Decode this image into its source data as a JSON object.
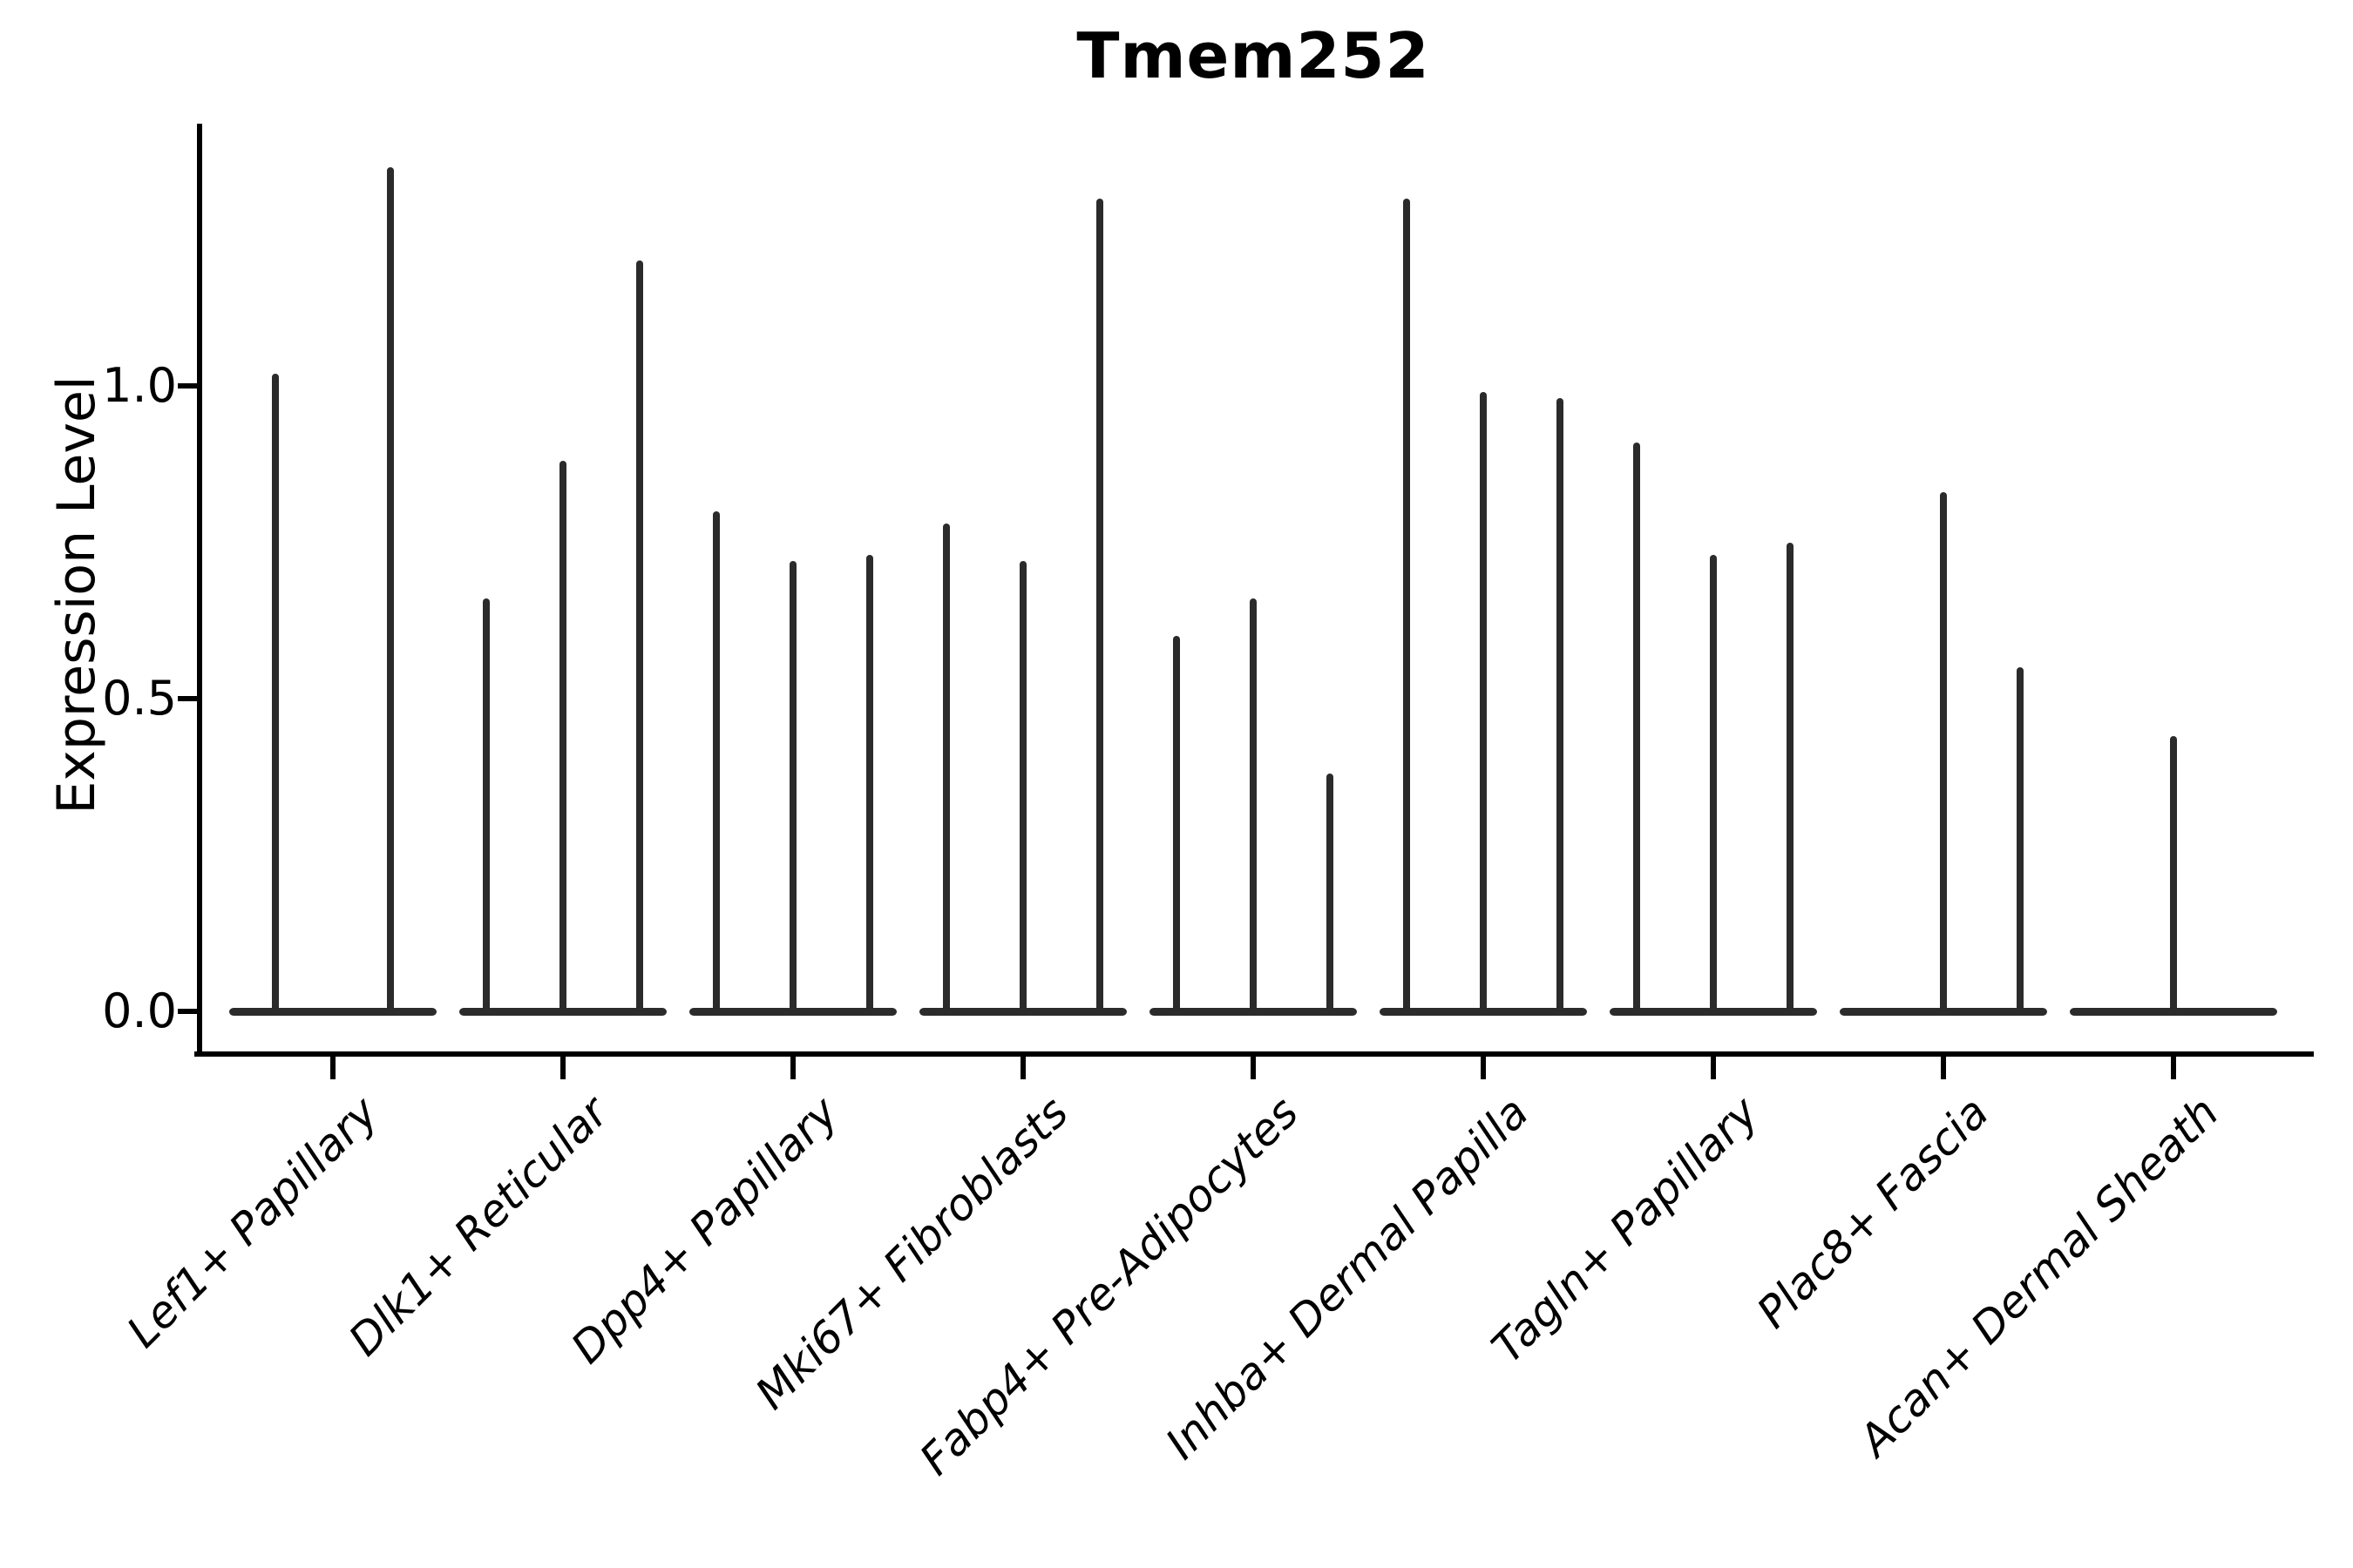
{
  "title": "Tmem252",
  "y_axis": {
    "label": "Expression Level"
  },
  "colors": {
    "violin": "#2b2b2b",
    "axis": "#000000",
    "text": "#000000",
    "background": "#ffffff"
  },
  "chart_data": {
    "type": "violin",
    "title": "Tmem252",
    "xlabel": "",
    "ylabel": "Expression Level",
    "ylim": [
      -0.07,
      1.42
    ],
    "grid": false,
    "legend": "none",
    "ytick_labels": [
      "1.0",
      "0.5",
      "0.0"
    ],
    "ytick_values": [
      1.0,
      0.5,
      0.0
    ],
    "categories": [
      "Lef1+ Papillary",
      "Dlk1+ Reticular",
      "Dpp4+ Papillary",
      "Mki67+ Fibroblasts",
      "Fabp4+ Pre-Adipocytes",
      "Inhba+ Dermal Papilla",
      "Tagln+ Papillary",
      "Plac8+ Fascia",
      "Acan+ Dermal Sheath"
    ],
    "baseline_value": 0.0,
    "description": "Each category shows violins whose density mass sits at expression 0 (flat base) with a thin spike up to the maximum expression value.",
    "violins": [
      {
        "category": "Lef1+ Papillary",
        "spikes": [
          {
            "offset_frac": -0.25,
            "max": 1.02
          },
          {
            "offset_frac": 0.25,
            "max": 1.35
          }
        ]
      },
      {
        "category": "Dlk1+ Reticular",
        "spikes": [
          {
            "offset_frac": -0.3333,
            "max": 0.66
          },
          {
            "offset_frac": 0,
            "max": 0.88
          },
          {
            "offset_frac": 0.3333,
            "max": 1.2
          }
        ]
      },
      {
        "category": "Dpp4+ Papillary",
        "spikes": [
          {
            "offset_frac": -0.3333,
            "max": 0.8
          },
          {
            "offset_frac": 0,
            "max": 0.72
          },
          {
            "offset_frac": 0.3333,
            "max": 0.73
          }
        ]
      },
      {
        "category": "Mki67+ Fibroblasts",
        "spikes": [
          {
            "offset_frac": -0.3333,
            "max": 0.78
          },
          {
            "offset_frac": 0,
            "max": 0.72
          },
          {
            "offset_frac": 0.3333,
            "max": 1.3
          }
        ]
      },
      {
        "category": "Fabp4+ Pre-Adipocytes",
        "spikes": [
          {
            "offset_frac": -0.3333,
            "max": 0.6
          },
          {
            "offset_frac": 0,
            "max": 0.66
          },
          {
            "offset_frac": 0.3333,
            "max": 0.38
          }
        ]
      },
      {
        "category": "Inhba+ Dermal Papilla",
        "spikes": [
          {
            "offset_frac": -0.3333,
            "max": 1.3
          },
          {
            "offset_frac": 0,
            "max": 0.99
          },
          {
            "offset_frac": 0.3333,
            "max": 0.98
          }
        ]
      },
      {
        "category": "Tagln+ Papillary",
        "spikes": [
          {
            "offset_frac": -0.3333,
            "max": 0.91
          },
          {
            "offset_frac": 0,
            "max": 0.73
          },
          {
            "offset_frac": 0.3333,
            "max": 0.75
          }
        ]
      },
      {
        "category": "Plac8+ Fascia",
        "spikes": [
          {
            "offset_frac": 0,
            "max": 0.83
          },
          {
            "offset_frac": 0.3333,
            "max": 0.55
          }
        ]
      },
      {
        "category": "Acan+ Dermal Sheath",
        "spikes": [
          {
            "offset_frac": 0,
            "max": 0.44
          }
        ]
      }
    ]
  }
}
